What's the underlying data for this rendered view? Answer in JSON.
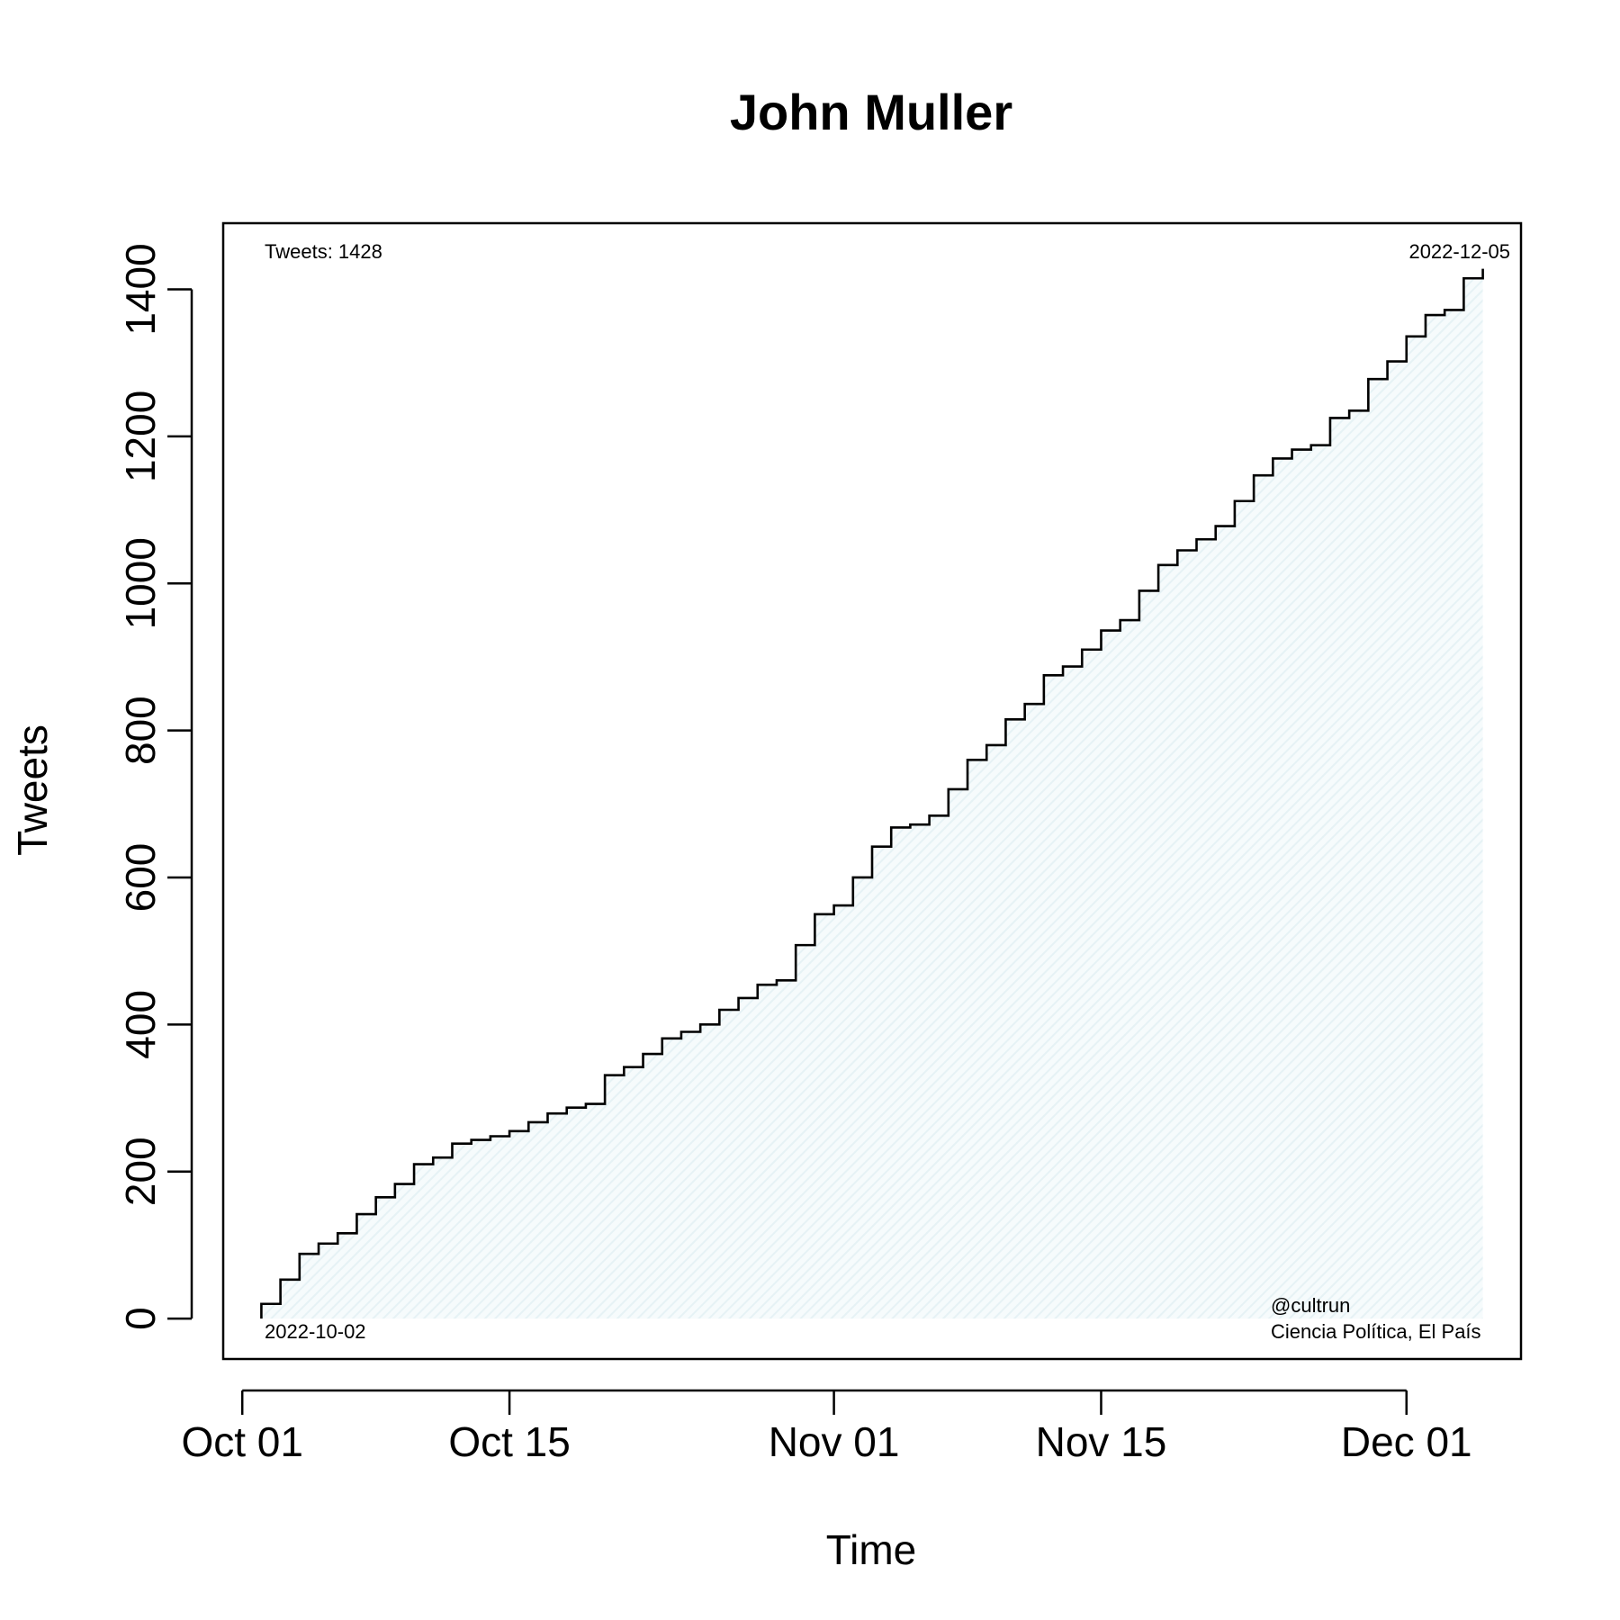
{
  "chart_data": {
    "type": "line",
    "title": "John Muller",
    "xlabel": "Time",
    "ylabel": "Tweets",
    "x_ticks": [
      {
        "date": "2022-10-01",
        "label": "Oct 01"
      },
      {
        "date": "2022-10-15",
        "label": "Oct 15"
      },
      {
        "date": "2022-11-01",
        "label": "Nov 01"
      },
      {
        "date": "2022-11-15",
        "label": "Nov 15"
      },
      {
        "date": "2022-12-01",
        "label": "Dec 01"
      }
    ],
    "y_ticks": [
      0,
      200,
      400,
      600,
      800,
      1000,
      1200,
      1400
    ],
    "xlim": [
      "2022-09-30",
      "2022-12-07"
    ],
    "ylim": [
      -55,
      1490
    ],
    "grid": false,
    "fill_color": "#e6f2f5",
    "line_color": "#000000",
    "annotations": {
      "top_left": "Tweets: 1428",
      "top_right": "2022-12-05",
      "bottom_left": "2022-10-02",
      "credit_line1": "@cultrun",
      "credit_line2": "Ciencia Política, El País"
    },
    "series": [
      {
        "x": [
          "2022-10-02",
          "2022-10-03",
          "2022-10-04",
          "2022-10-05",
          "2022-10-06",
          "2022-10-07",
          "2022-10-08",
          "2022-10-09",
          "2022-10-10",
          "2022-10-11",
          "2022-10-12",
          "2022-10-13",
          "2022-10-14",
          "2022-10-15",
          "2022-10-16",
          "2022-10-17",
          "2022-10-18",
          "2022-10-19",
          "2022-10-20",
          "2022-10-21",
          "2022-10-22",
          "2022-10-23",
          "2022-10-24",
          "2022-10-25",
          "2022-10-26",
          "2022-10-27",
          "2022-10-28",
          "2022-10-29",
          "2022-10-30",
          "2022-10-31",
          "2022-11-01",
          "2022-11-02",
          "2022-11-03",
          "2022-11-04",
          "2022-11-05",
          "2022-11-06",
          "2022-11-07",
          "2022-11-08",
          "2022-11-09",
          "2022-11-10",
          "2022-11-11",
          "2022-11-12",
          "2022-11-13",
          "2022-11-14",
          "2022-11-15",
          "2022-11-16",
          "2022-11-17",
          "2022-11-18",
          "2022-11-19",
          "2022-11-20",
          "2022-11-21",
          "2022-11-22",
          "2022-11-23",
          "2022-11-24",
          "2022-11-25",
          "2022-11-26",
          "2022-11-27",
          "2022-11-28",
          "2022-11-29",
          "2022-11-30",
          "2022-12-01",
          "2022-12-02",
          "2022-12-03",
          "2022-12-04",
          "2022-12-05"
        ],
        "values": [
          20,
          53,
          88,
          102,
          116,
          142,
          165,
          183,
          210,
          219,
          238,
          243,
          248,
          255,
          267,
          279,
          287,
          292,
          331,
          342,
          360,
          381,
          390,
          400,
          420,
          436,
          454,
          460,
          508,
          550,
          562,
          600,
          642,
          668,
          672,
          684,
          720,
          760,
          780,
          815,
          836,
          875,
          887,
          910,
          936,
          950,
          990,
          1025,
          1045,
          1060,
          1078,
          1112,
          1147,
          1170,
          1182,
          1188,
          1225,
          1235,
          1278,
          1302,
          1336,
          1365,
          1372,
          1415,
          1428
        ]
      }
    ]
  }
}
